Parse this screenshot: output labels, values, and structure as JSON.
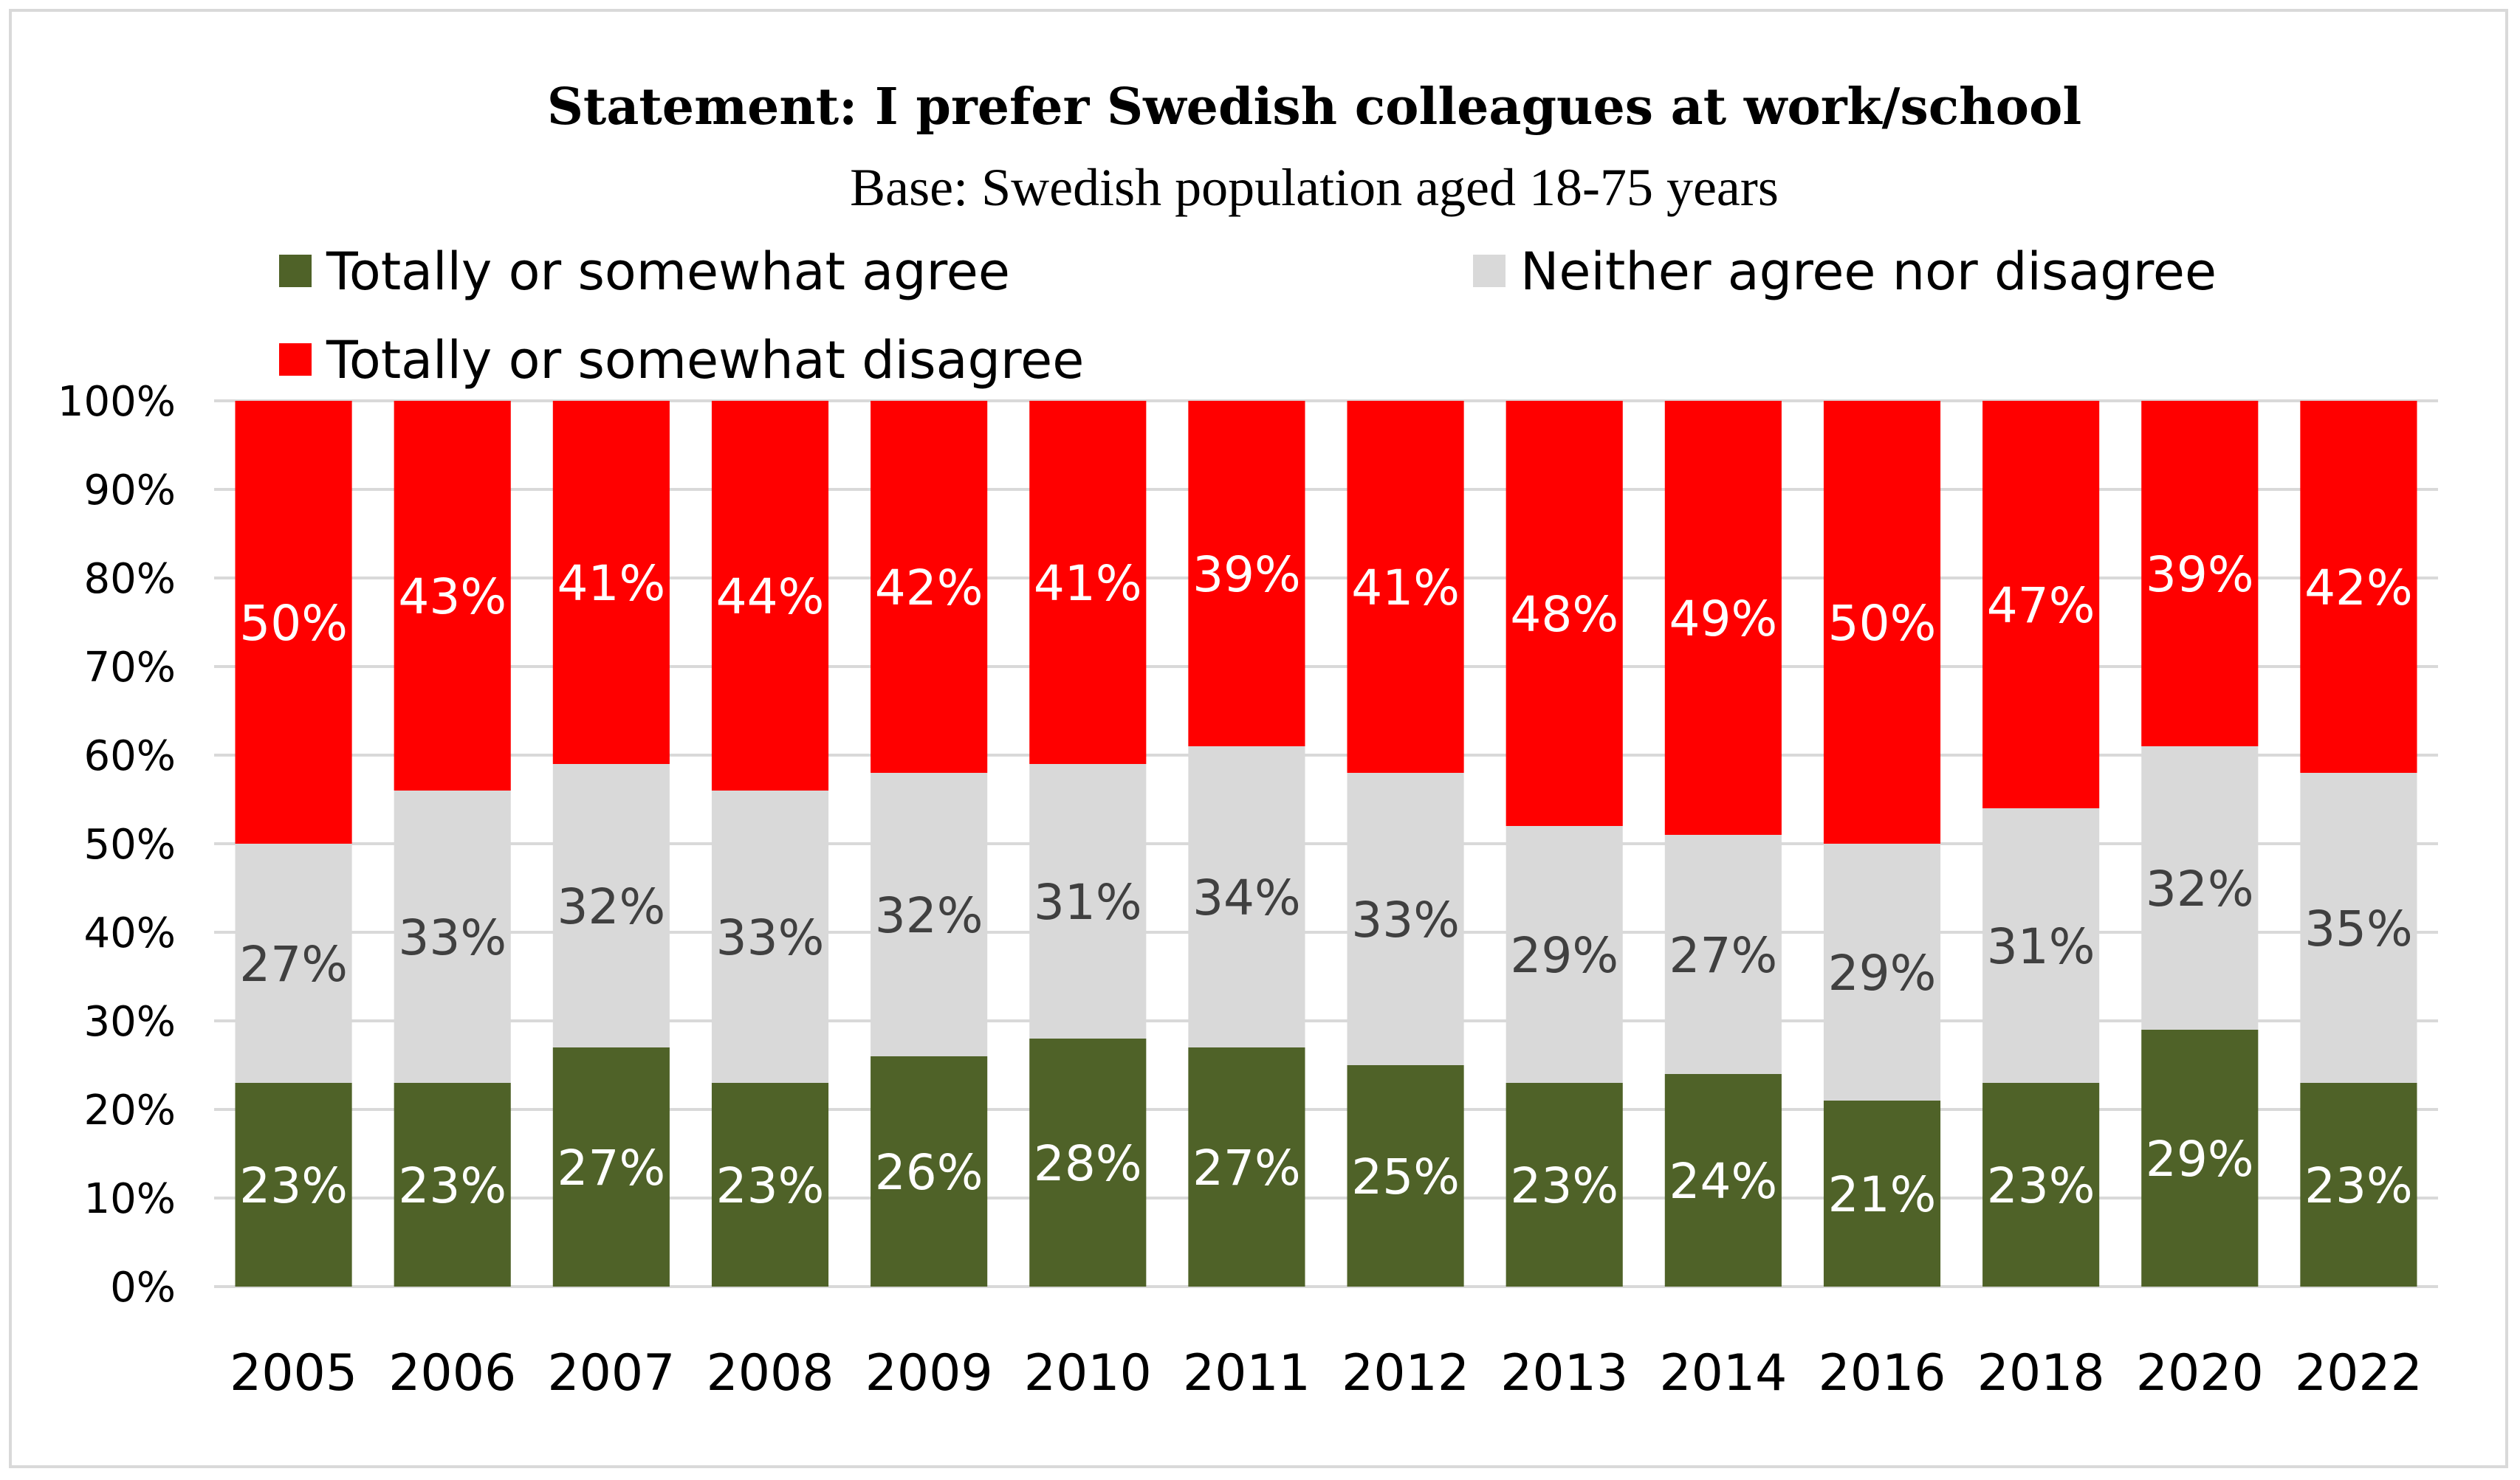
{
  "chart_data": {
    "type": "bar",
    "stacked": true,
    "title": "Statement: I prefer Swedish colleagues at work/school",
    "subtitle": "Base: Swedish population aged 18-75 years",
    "categories": [
      "2005",
      "2006",
      "2007",
      "2008",
      "2009",
      "2010",
      "2011",
      "2012",
      "2013",
      "2014",
      "2016",
      "2018",
      "2020",
      "2022"
    ],
    "series": [
      {
        "name": "Totally or somewhat agree",
        "color": "#4f6228",
        "label_color": "#ffffff",
        "values": [
          23,
          23,
          27,
          23,
          26,
          28,
          27,
          25,
          23,
          24,
          21,
          23,
          29,
          23
        ]
      },
      {
        "name": "Neither agree nor disagree",
        "color": "#d9d9d9",
        "label_color": "#404040",
        "values": [
          27,
          33,
          32,
          33,
          32,
          31,
          34,
          33,
          29,
          27,
          29,
          31,
          32,
          35
        ]
      },
      {
        "name": "Totally or somewhat disagree",
        "color": "#ff0000",
        "label_color": "#ffffff",
        "values": [
          50,
          43,
          41,
          44,
          42,
          41,
          39,
          41,
          48,
          49,
          50,
          47,
          39,
          42
        ]
      }
    ],
    "ylim": [
      0,
      100
    ],
    "yticks": [
      "0%",
      "10%",
      "20%",
      "30%",
      "40%",
      "50%",
      "60%",
      "70%",
      "80%",
      "90%",
      "100%"
    ],
    "value_suffix": "%",
    "legend_position": "top",
    "grid": true
  }
}
